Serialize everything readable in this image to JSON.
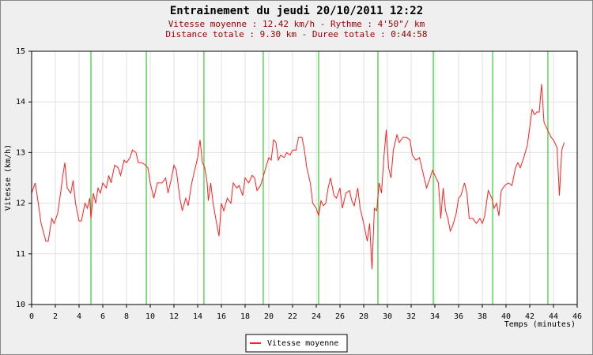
{
  "chart_data": {
    "type": "line",
    "title": "Entrainement du jeudi 20/10/2011 12:22",
    "subtitle": [
      "Vitesse moyenne : 12.42 km/h - Rythme : 4'50\"/ km",
      "Distance totale : 9.30 km - Duree totale : 0:44:58"
    ],
    "y_label": "Vitesse (km/h)",
    "x_label": "Temps (minutes)",
    "xlim": [
      0,
      46
    ],
    "xticks": [
      0,
      2,
      4,
      6,
      8,
      10,
      12,
      14,
      16,
      18,
      20,
      22,
      24,
      26,
      28,
      30,
      32,
      34,
      36,
      38,
      40,
      42,
      44,
      46
    ],
    "ylim": [
      10,
      15
    ],
    "yticks": [
      10,
      11,
      12,
      13,
      14,
      15
    ],
    "grid": true,
    "legend": "bottom",
    "km_marks": {
      "color": "#33cc33",
      "x": [
        5.0,
        9.67,
        14.53,
        19.53,
        24.2,
        29.2,
        33.87,
        38.87,
        43.53
      ]
    },
    "x": [
      0,
      0.3,
      0.5,
      0.8,
      1.2,
      1.4,
      1.7,
      1.9,
      2.2,
      2.5,
      2.6,
      2.8,
      3.0,
      3.3,
      3.5,
      3.7,
      4.0,
      4.2,
      4.5,
      4.7,
      4.9,
      5.0,
      5.2,
      5.4,
      5.6,
      5.8,
      6.0,
      6.3,
      6.5,
      6.7,
      7.0,
      7.3,
      7.5,
      7.8,
      8.0,
      8.3,
      8.5,
      8.8,
      9.0,
      9.3,
      9.6,
      9.8,
      10.0,
      10.3,
      10.6,
      11.0,
      11.3,
      11.5,
      11.8,
      12.0,
      12.2,
      12.5,
      12.7,
      13.0,
      13.2,
      13.5,
      13.7,
      14.0,
      14.2,
      14.4,
      14.6,
      14.8,
      14.9,
      15.1,
      15.3,
      15.6,
      15.8,
      16.0,
      16.2,
      16.5,
      16.8,
      17.0,
      17.3,
      17.5,
      17.8,
      18.0,
      18.3,
      18.6,
      18.8,
      19.0,
      19.3,
      19.5,
      19.8,
      20.0,
      20.2,
      20.4,
      20.6,
      20.8,
      21.0,
      21.3,
      21.5,
      21.8,
      22.0,
      22.3,
      22.5,
      22.8,
      23.0,
      23.2,
      23.5,
      23.7,
      24.0,
      24.2,
      24.4,
      24.6,
      24.8,
      25.0,
      25.2,
      25.5,
      25.7,
      26.0,
      26.2,
      26.5,
      26.8,
      27.0,
      27.2,
      27.5,
      27.7,
      28.0,
      28.3,
      28.5,
      28.7,
      28.9,
      29.1,
      29.3,
      29.5,
      29.7,
      29.9,
      30.1,
      30.3,
      30.5,
      30.8,
      31.0,
      31.3,
      31.6,
      31.9,
      32.1,
      32.4,
      32.7,
      33.0,
      33.3,
      33.6,
      33.8,
      34.0,
      34.3,
      34.5,
      34.7,
      34.9,
      35.1,
      35.3,
      35.5,
      35.8,
      36.0,
      36.2,
      36.5,
      36.7,
      36.9,
      37.2,
      37.5,
      37.8,
      38.0,
      38.2,
      38.5,
      38.8,
      39.0,
      39.2,
      39.4,
      39.6,
      39.9,
      40.2,
      40.5,
      40.8,
      41.0,
      41.2,
      41.5,
      41.8,
      42.0,
      42.2,
      42.4,
      42.6,
      42.8,
      43.0,
      43.2,
      43.5,
      43.8,
      44.0,
      44.3,
      44.5,
      44.7,
      44.9
    ],
    "series": [
      {
        "name": "Vitesse moyenne",
        "color": "#ff2020",
        "values": [
          12.2,
          12.4,
          12.1,
          11.6,
          11.25,
          11.25,
          11.7,
          11.6,
          11.8,
          12.3,
          12.5,
          12.8,
          12.3,
          12.2,
          12.45,
          12.0,
          11.65,
          11.65,
          12.0,
          11.9,
          12.1,
          11.7,
          12.2,
          12.0,
          12.3,
          12.2,
          12.4,
          12.3,
          12.55,
          12.4,
          12.75,
          12.7,
          12.55,
          12.85,
          12.8,
          12.9,
          13.05,
          13.0,
          12.8,
          12.8,
          12.75,
          12.7,
          12.4,
          12.1,
          12.4,
          12.4,
          12.5,
          12.2,
          12.5,
          12.75,
          12.65,
          12.1,
          11.85,
          12.1,
          11.95,
          12.4,
          12.6,
          12.9,
          13.25,
          12.8,
          12.7,
          12.4,
          12.05,
          12.4,
          12.0,
          11.6,
          11.35,
          12.0,
          11.85,
          12.1,
          12.0,
          12.4,
          12.3,
          12.35,
          12.15,
          12.5,
          12.4,
          12.55,
          12.5,
          12.25,
          12.35,
          12.5,
          12.75,
          12.9,
          12.85,
          13.25,
          13.2,
          12.85,
          12.95,
          12.9,
          13.0,
          12.95,
          13.05,
          13.05,
          13.3,
          13.3,
          13.05,
          12.7,
          12.4,
          12.0,
          11.9,
          11.75,
          12.05,
          11.95,
          12.0,
          12.3,
          12.5,
          12.15,
          12.1,
          12.3,
          11.9,
          12.2,
          12.25,
          12.05,
          11.95,
          12.3,
          11.9,
          11.6,
          11.25,
          11.6,
          10.7,
          11.9,
          11.85,
          12.4,
          12.2,
          12.9,
          13.45,
          12.7,
          12.5,
          13.05,
          13.35,
          13.2,
          13.3,
          13.3,
          13.25,
          12.95,
          12.85,
          12.9,
          12.6,
          12.3,
          12.5,
          12.65,
          12.55,
          12.4,
          11.7,
          12.3,
          11.85,
          11.7,
          11.45,
          11.55,
          11.8,
          12.1,
          12.15,
          12.4,
          12.2,
          11.7,
          11.7,
          11.6,
          11.7,
          11.6,
          11.75,
          12.25,
          12.1,
          11.9,
          12.0,
          11.75,
          12.25,
          12.35,
          12.4,
          12.35,
          12.7,
          12.8,
          12.7,
          12.9,
          13.15,
          13.5,
          13.85,
          13.75,
          13.8,
          13.8,
          14.35,
          13.6,
          13.45,
          13.3,
          13.25,
          13.1,
          12.15,
          13.05,
          13.2
        ]
      }
    ]
  }
}
